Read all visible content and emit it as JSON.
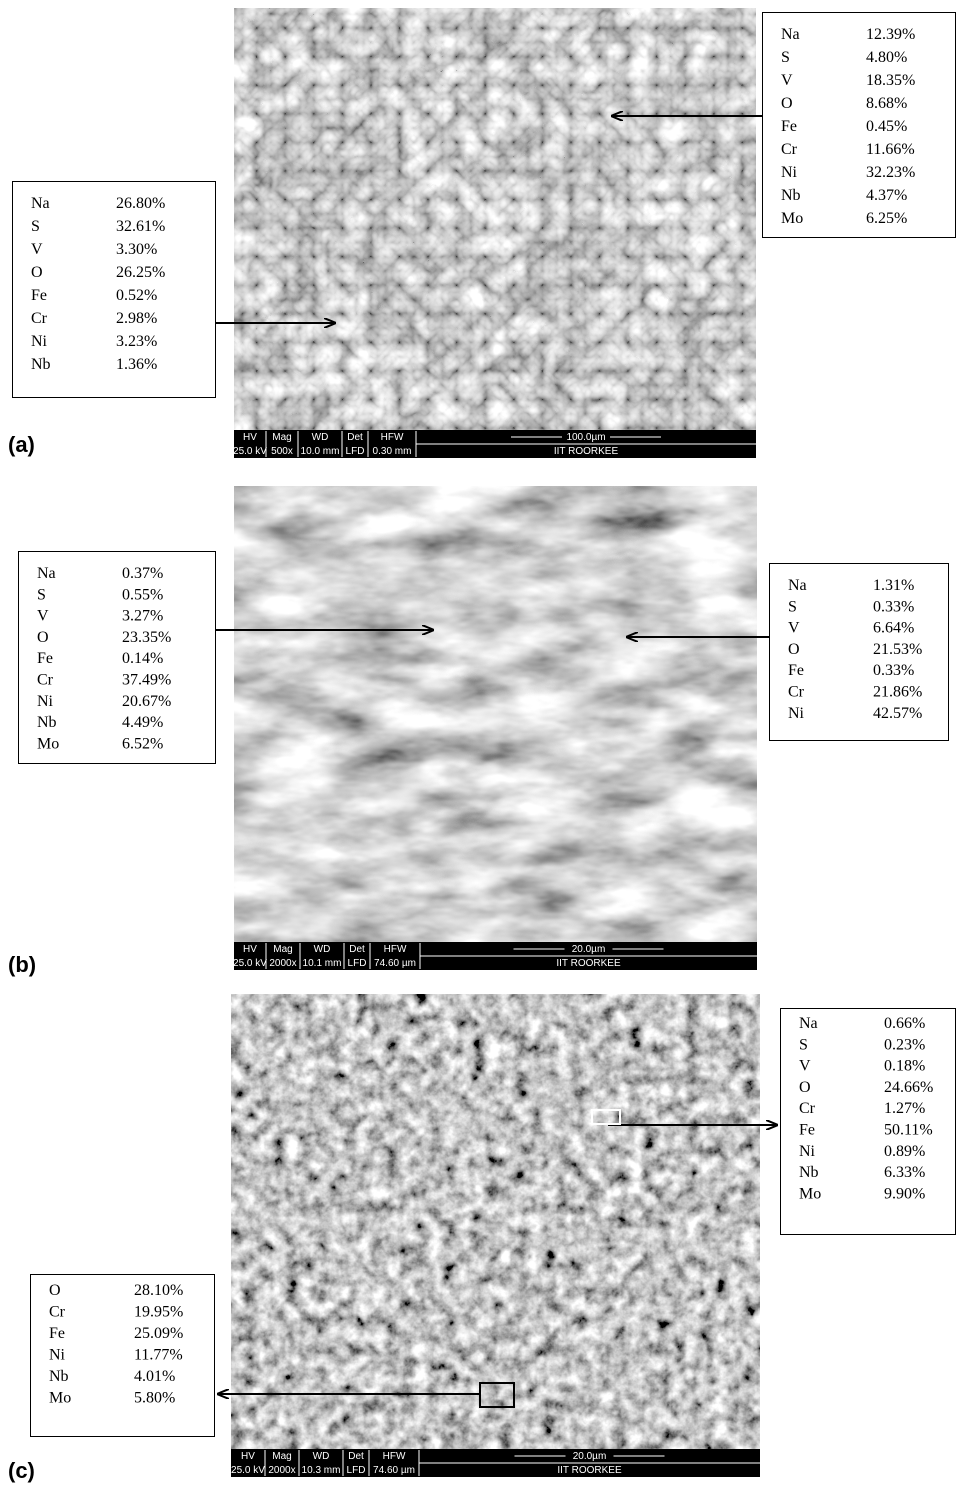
{
  "panels": [
    {
      "label": "(a)",
      "info": {
        "labels": [
          "HV",
          "Mag",
          "WD",
          "Det",
          "HFW"
        ],
        "values": [
          "25.0 kV",
          "500x",
          "10.0 mm",
          "LFD",
          "0.30 mm"
        ],
        "scale": "100.0µm",
        "institution": "IIT ROORKEE"
      },
      "boxes": [
        {
          "rows": [
            [
              "Na",
              "26.80%"
            ],
            [
              "S",
              "32.61%"
            ],
            [
              "V",
              "3.30%"
            ],
            [
              "O",
              "26.25%"
            ],
            [
              "Fe",
              "0.52%"
            ],
            [
              "Cr",
              "2.98%"
            ],
            [
              "Ni",
              "3.23%"
            ],
            [
              "Nb",
              "1.36%"
            ]
          ]
        },
        {
          "rows": [
            [
              "Na",
              "12.39%"
            ],
            [
              "S",
              "4.80%"
            ],
            [
              "V",
              "18.35%"
            ],
            [
              "O",
              "8.68%"
            ],
            [
              "Fe",
              "0.45%"
            ],
            [
              "Cr",
              "11.66%"
            ],
            [
              "Ni",
              "32.23%"
            ],
            [
              "Nb",
              "4.37%"
            ],
            [
              "Mo",
              "6.25%"
            ]
          ]
        }
      ]
    },
    {
      "label": "(b)",
      "info": {
        "labels": [
          "HV",
          "Mag",
          "WD",
          "Det",
          "HFW"
        ],
        "values": [
          "25.0 kV",
          "2000x",
          "10.1 mm",
          "LFD",
          "74.60 µm"
        ],
        "scale": "20.0µm",
        "institution": "IIT ROORKEE"
      },
      "boxes": [
        {
          "rows": [
            [
              "Na",
              "0.37%"
            ],
            [
              "S",
              "0.55%"
            ],
            [
              "V",
              "3.27%"
            ],
            [
              "O",
              "23.35%"
            ],
            [
              "Fe",
              "0.14%"
            ],
            [
              "Cr",
              "37.49%"
            ],
            [
              "Ni",
              "20.67%"
            ],
            [
              "Nb",
              "4.49%"
            ],
            [
              "Mo",
              "6.52%"
            ]
          ]
        },
        {
          "rows": [
            [
              "Na",
              "1.31%"
            ],
            [
              "S",
              "0.33%"
            ],
            [
              "V",
              "6.64%"
            ],
            [
              "O",
              "21.53%"
            ],
            [
              "Fe",
              "0.33%"
            ],
            [
              "Cr",
              "21.86%"
            ],
            [
              "Ni",
              "42.57%"
            ]
          ]
        }
      ]
    },
    {
      "label": "(c)",
      "info": {
        "labels": [
          "HV",
          "Mag",
          "WD",
          "Det",
          "HFW"
        ],
        "values": [
          "25.0 kV",
          "2000x",
          "10.3 mm",
          "LFD",
          "74.60 µm"
        ],
        "scale": "20.0µm",
        "institution": "IIT ROORKEE"
      },
      "boxes": [
        {
          "rows": [
            [
              "Na",
              "0.66%"
            ],
            [
              "S",
              "0.23%"
            ],
            [
              "V",
              "0.18%"
            ],
            [
              "O",
              "24.66%"
            ],
            [
              "Cr",
              "1.27%"
            ],
            [
              "Fe",
              "50.11%"
            ],
            [
              "Ni",
              "0.89%"
            ],
            [
              "Nb",
              "6.33%"
            ],
            [
              "Mo",
              "9.90%"
            ]
          ]
        },
        {
          "rows": [
            [
              "O",
              "28.10%"
            ],
            [
              "Cr",
              "19.95%"
            ],
            [
              "Fe",
              "25.09%"
            ],
            [
              "Ni",
              "11.77%"
            ],
            [
              "Nb",
              "4.01%"
            ],
            [
              "Mo",
              "5.80%"
            ]
          ]
        }
      ]
    }
  ]
}
